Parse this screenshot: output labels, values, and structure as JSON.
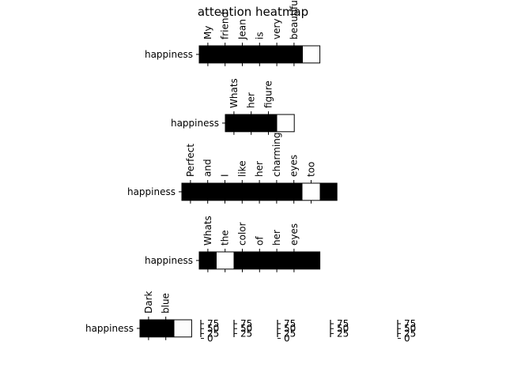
{
  "chart_data": {
    "type": "heatmap",
    "title": "attention heatmap",
    "panels": [
      {
        "row_label": "happiness",
        "tokens": [
          "My",
          "friend",
          "Jean",
          "is",
          "very",
          "beautiful"
        ],
        "values": [
          0,
          0,
          0,
          0,
          0,
          0,
          1
        ]
      },
      {
        "row_label": "happiness",
        "tokens": [
          "Whats",
          "her",
          "figure"
        ],
        "values": [
          0,
          0,
          0,
          1
        ]
      },
      {
        "row_label": "happiness",
        "tokens": [
          "Perfect",
          "and",
          "I",
          "like",
          "her",
          "charming",
          "eyes",
          "too"
        ],
        "values": [
          0,
          0,
          0,
          0,
          0,
          0,
          0,
          1,
          0
        ]
      },
      {
        "row_label": "happiness",
        "tokens": [
          "Whats",
          "the",
          "color",
          "of",
          "her",
          "eyes"
        ],
        "values": [
          0,
          1,
          0,
          0,
          0,
          0,
          0
        ]
      },
      {
        "row_label": "happiness",
        "tokens": [
          "Dark",
          "blue"
        ],
        "values": [
          0,
          0,
          0.99
        ]
      }
    ],
    "colorbars": [
      {
        "ticks": [
          "75",
          "50",
          "25",
          "0"
        ]
      },
      {
        "ticks": [
          "75",
          "50",
          "25"
        ]
      },
      {
        "ticks": [
          "75",
          "50",
          "25",
          "0"
        ]
      },
      {
        "ticks": [
          "75",
          "50",
          "25"
        ]
      },
      {
        "ticks": [
          "75",
          "50",
          "25",
          "0"
        ]
      }
    ],
    "colormap": {
      "low": "#000000",
      "high": "#ffffff"
    },
    "grid": false
  }
}
